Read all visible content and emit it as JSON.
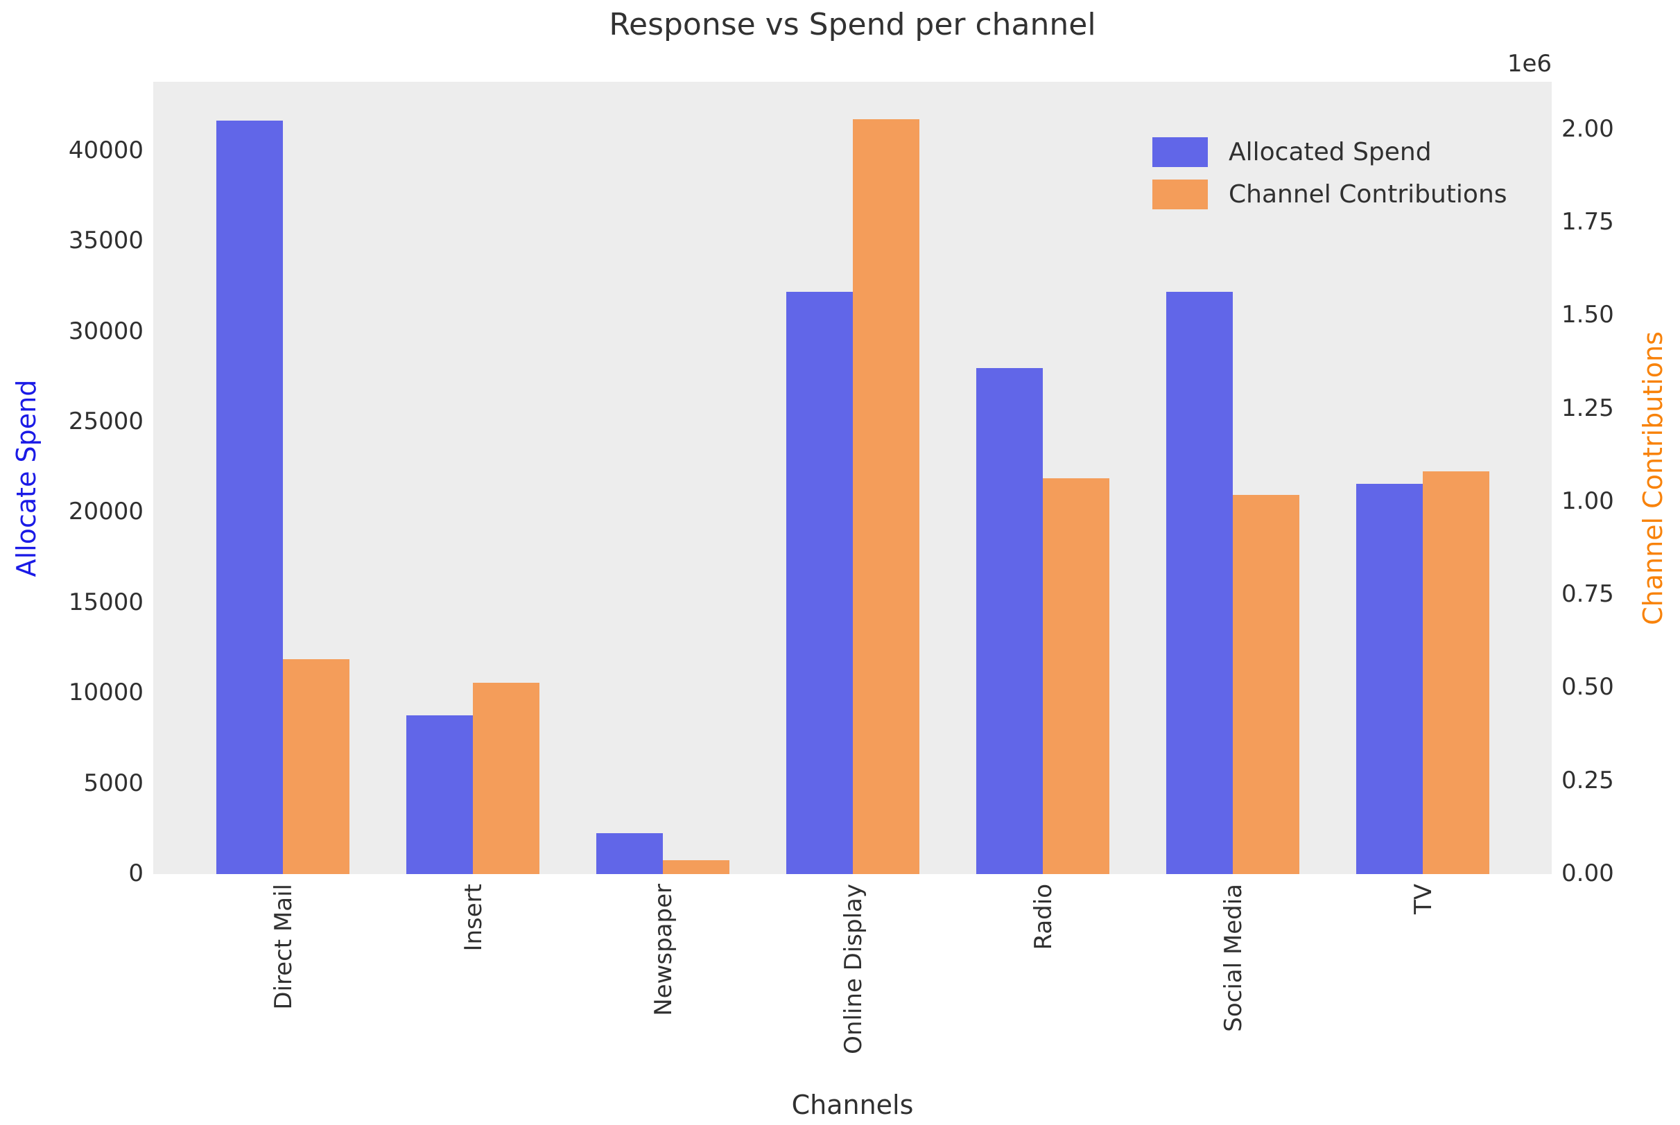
{
  "figure": {
    "title": "Response vs Spend per channel",
    "xlabel": "Channels",
    "offset_text": "1e6"
  },
  "chart_data": {
    "type": "bar",
    "title": "Response vs Spend per channel",
    "xlabel": "Channels",
    "categories": [
      "Direct Mail",
      "Insert",
      "Newspaper",
      "Online Display",
      "Radio",
      "Social Media",
      "TV"
    ],
    "series": [
      {
        "name": "Allocated Spend",
        "axis": "left",
        "color": "#6166e8",
        "values": [
          41700,
          8800,
          2260,
          32200,
          28000,
          32200,
          21600
        ]
      },
      {
        "name": "Channel Contributions",
        "axis": "right",
        "color": "#f49d5a",
        "values": [
          577000,
          514000,
          37000,
          2028000,
          1063000,
          1019000,
          1082000
        ]
      }
    ],
    "left_axis": {
      "label": "Allocate Spend",
      "label_color": "#1a1ae6",
      "ticks": [
        0,
        5000,
        10000,
        15000,
        20000,
        25000,
        30000,
        35000,
        40000
      ],
      "tick_labels": [
        "0",
        "5000",
        "10000",
        "15000",
        "20000",
        "25000",
        "30000",
        "35000",
        "40000"
      ],
      "lim": [
        0,
        43830
      ]
    },
    "right_axis": {
      "label": "Channel Contributions",
      "label_color": "#f8820a",
      "ticks": [
        0,
        250000,
        500000,
        750000,
        1000000,
        1250000,
        1500000,
        1750000,
        2000000
      ],
      "tick_labels": [
        "0.00",
        "0.25",
        "0.50",
        "0.75",
        "1.00",
        "1.25",
        "1.50",
        "1.75",
        "2.00"
      ],
      "offset_text": "1e6",
      "lim": [
        0,
        2128000
      ]
    },
    "legend": {
      "position": "upper right",
      "entries": [
        "Allocated Spend",
        "Channel Contributions"
      ]
    },
    "grid": false,
    "plot_background": "#ededed"
  }
}
